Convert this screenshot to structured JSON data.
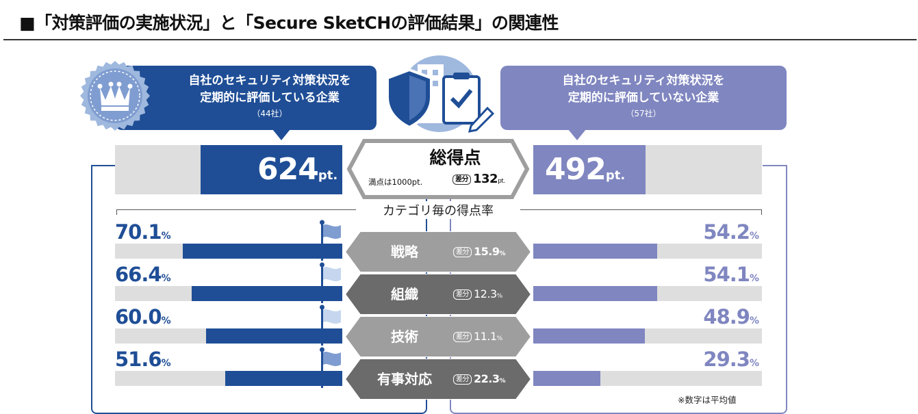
{
  "title": "■「対策評価の実施状況」と「Secure SketCHの評価結果」の関連性",
  "groups": {
    "left": {
      "line1": "自社のセキュリティ対策状況を",
      "line2": "定期的に評価している企業",
      "count": "（44社）",
      "total_value": "624",
      "unit": "pt."
    },
    "right": {
      "line1": "自社のセキュリティ対策状況を",
      "line2": "定期的に評価していない企業",
      "count": "（57社）",
      "total_value": "492",
      "unit": "pt."
    }
  },
  "total": {
    "label": "総得点",
    "max_label": "満点は1000pt.",
    "diff_label": "差分",
    "diff_value": "132",
    "diff_unit": "pt."
  },
  "category_heading": "カテゴリ毎の得点率",
  "note": "※数字は平均値",
  "categories": [
    {
      "name": "戦略",
      "left": "70.1",
      "right": "54.2",
      "diff": "15.9",
      "diff_bold": true
    },
    {
      "name": "組織",
      "left": "66.4",
      "right": "54.1",
      "diff": "12.3",
      "diff_bold": false
    },
    {
      "name": "技術",
      "left": "60.0",
      "right": "48.9",
      "diff": "11.1",
      "diff_bold": false
    },
    {
      "name": "有事対応",
      "left": "51.6",
      "right": "29.3",
      "diff": "22.3",
      "diff_bold": true
    }
  ],
  "pct_unit": "%",
  "colors": {
    "left": "#1f4e96",
    "right": "#7f86c0",
    "track": "#dedede",
    "chevron_light": "#9e9e9e",
    "chevron_dark": "#6b6b6b"
  },
  "chart_data": {
    "type": "bar",
    "title": "「対策評価の実施状況」と「Secure SketCHの評価結果」の関連性",
    "total_score": {
      "max": 1000,
      "left": 624,
      "right": 492,
      "diff": 132
    },
    "categories": [
      "戦略",
      "組織",
      "技術",
      "有事対応"
    ],
    "series": [
      {
        "name": "自社のセキュリティ対策状況を定期的に評価している企業",
        "values": [
          70.1,
          66.4,
          60.0,
          51.6
        ]
      },
      {
        "name": "自社のセキュリティ対策状況を定期的に評価していない企業",
        "values": [
          54.2,
          54.1,
          48.9,
          29.3
        ]
      }
    ],
    "differences": [
      15.9,
      12.3,
      11.1,
      22.3
    ],
    "ylim": [
      0,
      100
    ]
  }
}
